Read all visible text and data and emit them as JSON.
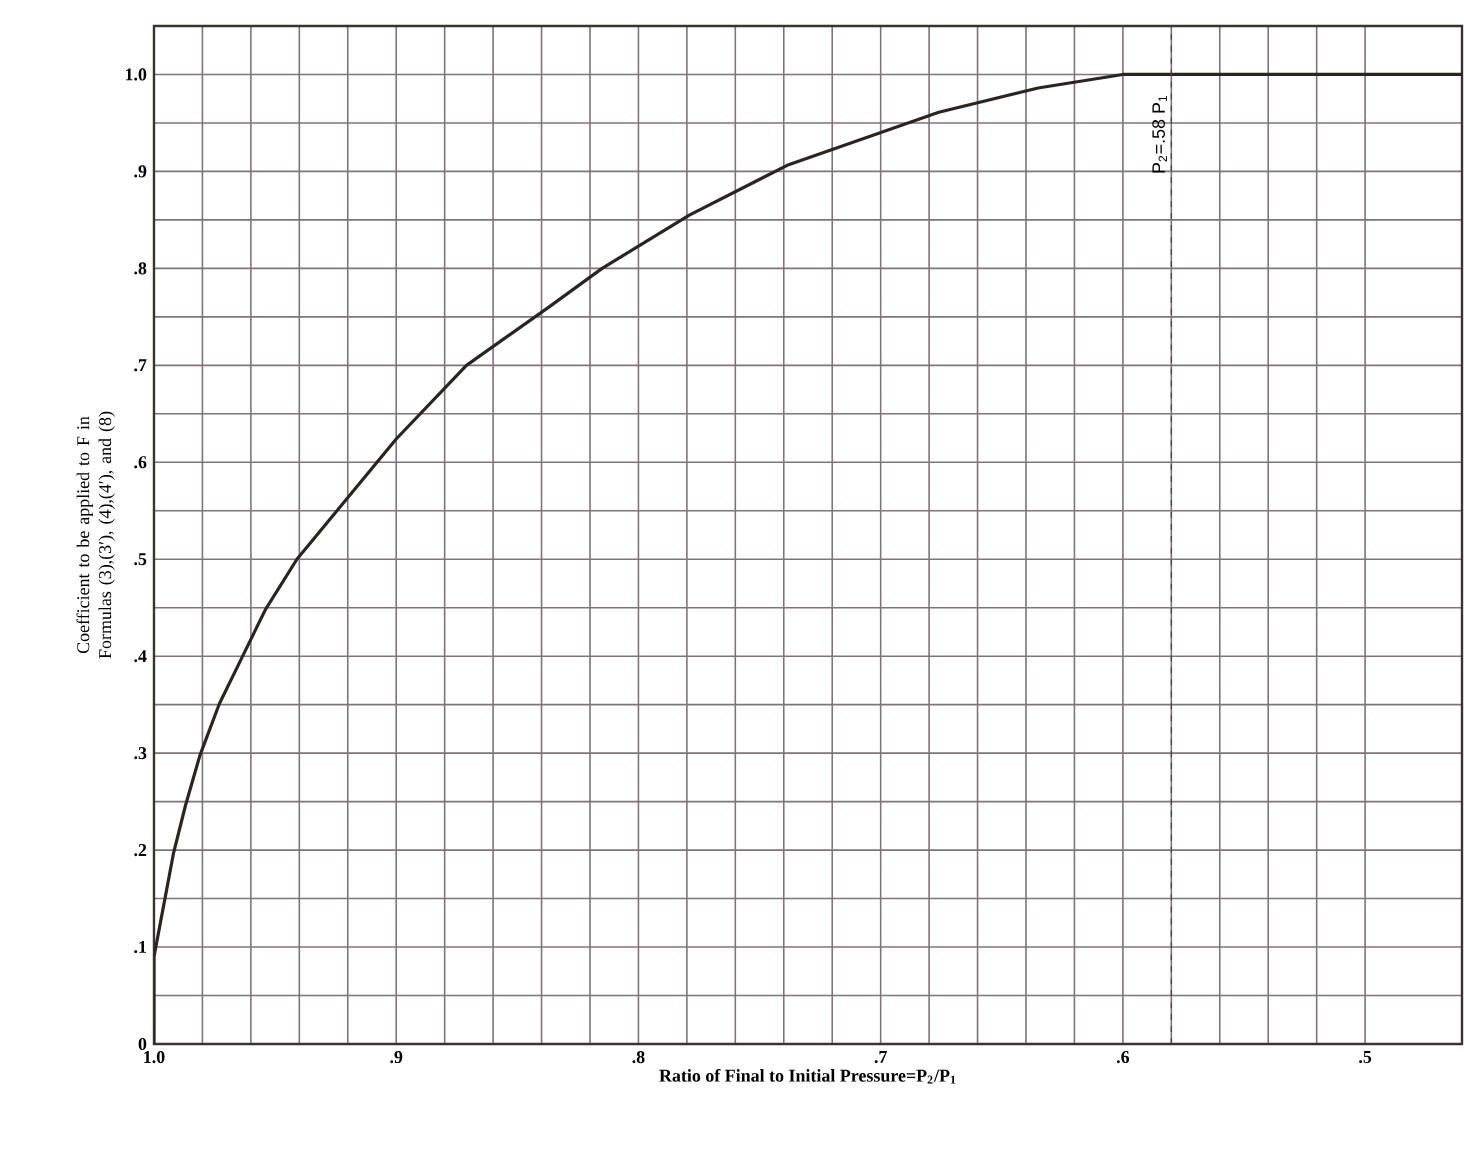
{
  "chart_data": {
    "type": "line",
    "xlabel": "Ratio of Final to Initial Pressure=P$_{2}$/P$_{1}$",
    "ylabel": "Coefficient to be applied to F in Formulas (3),(3′), (4),(4′), and (8)",
    "xlim": [
      1.0,
      0.46
    ],
    "ylim": [
      0,
      1.05
    ],
    "xticks": [
      {
        "value": 1.0,
        "label": "1.0"
      },
      {
        "value": 0.9,
        "label": ".9"
      },
      {
        "value": 0.8,
        "label": ".8"
      },
      {
        "value": 0.7,
        "label": ".7"
      },
      {
        "value": 0.6,
        "label": ".6"
      },
      {
        "value": 0.5,
        "label": ".5"
      }
    ],
    "yticks": [
      {
        "value": 0,
        "label": "0"
      },
      {
        "value": 0.1,
        "label": ".1"
      },
      {
        "value": 0.2,
        "label": ".2"
      },
      {
        "value": 0.3,
        "label": ".3"
      },
      {
        "value": 0.4,
        "label": ".4"
      },
      {
        "value": 0.5,
        "label": ".5"
      },
      {
        "value": 0.6,
        "label": ".6"
      },
      {
        "value": 0.7,
        "label": ".7"
      },
      {
        "value": 0.8,
        "label": ".8"
      },
      {
        "value": 0.9,
        "label": ".9"
      },
      {
        "value": 1.0,
        "label": "1.0"
      }
    ],
    "grid": true,
    "marker": "none",
    "line_style": "solid",
    "series": [
      {
        "color": "#2b2522",
        "x": [
          1.0,
          1.0,
          0.996,
          0.992,
          0.987,
          0.981,
          0.973,
          0.964,
          0.954,
          0.941,
          0.9,
          0.871,
          0.837,
          0.815,
          0.779,
          0.738,
          0.676,
          0.635,
          0.6,
          0.58,
          0.52,
          0.46
        ],
        "values": [
          0,
          0.09,
          0.143,
          0.196,
          0.246,
          0.298,
          0.351,
          0.397,
          0.448,
          0.5,
          0.624,
          0.7,
          0.76,
          0.8,
          0.855,
          0.907,
          0.961,
          0.986,
          1.0,
          1.0,
          1.0,
          1.0
        ]
      }
    ],
    "ref_lines": [
      {
        "axis": "x",
        "value": 0.58,
        "label": "P$_{2}$=.58 P$_{1}$",
        "line_style": "dashed",
        "color": "#4a4040"
      }
    ]
  }
}
